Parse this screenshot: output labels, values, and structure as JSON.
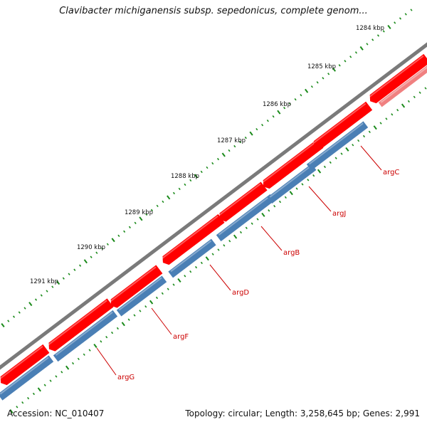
{
  "title": "Clavibacter michiganensis subsp. sepedonicus, complete genom...",
  "accession_text": "Accession: NC_010407",
  "summary_text": "Topology: circular; Length: 3,258,645 bp; Genes: 2,991",
  "ticks": [
    {
      "label": "1284 kbp"
    },
    {
      "label": "1285 kbp"
    },
    {
      "label": "1286 kbp"
    },
    {
      "label": "1287 kbp"
    },
    {
      "label": "1288 kbp"
    },
    {
      "label": "1289 kbp"
    },
    {
      "label": "1290 kbp"
    },
    {
      "label": "1291 kbp"
    }
  ],
  "genes": [
    {
      "name": "argC"
    },
    {
      "name": "argJ"
    },
    {
      "name": "argB"
    },
    {
      "name": "argD"
    },
    {
      "name": "argF"
    },
    {
      "name": "argG"
    }
  ],
  "colors": {
    "backbone": "#7a7a7a",
    "forward": "#ff0000",
    "forward_light": "#f08080",
    "reverse": "#4a7fb5",
    "tick": "#1a8a1a",
    "label": "#cc0000"
  }
}
